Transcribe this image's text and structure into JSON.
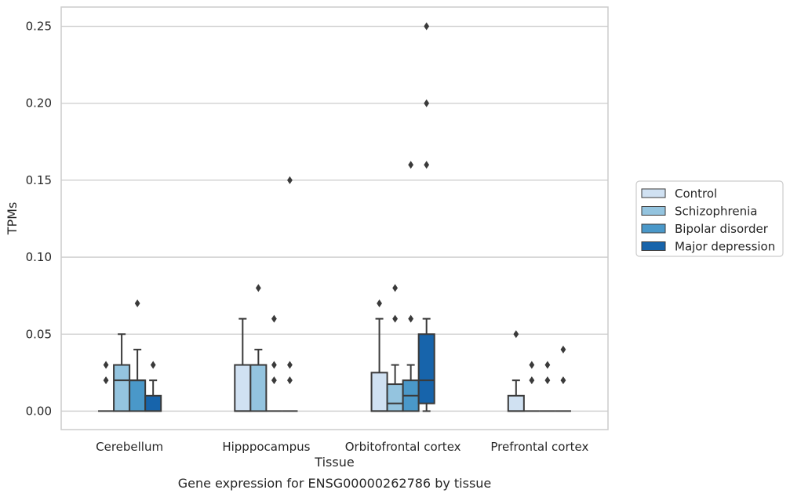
{
  "chart_data": {
    "type": "box",
    "title": "",
    "caption": "Gene expression for ENSG00000262786 by tissue",
    "xlabel": "Tissue",
    "ylabel": "TPMs",
    "ylim": [
      -0.012,
      0.2625
    ],
    "yticks": [
      "0.00",
      "0.05",
      "0.10",
      "0.15",
      "0.20",
      "0.25"
    ],
    "grid": "horizontal",
    "legend_position": "right-outside",
    "categories": [
      "Cerebellum",
      "Hipppocampus",
      "Orbitofrontal cortex",
      "Prefrontal cortex"
    ],
    "series": [
      {
        "name": "Control",
        "color": "#d0e1f2",
        "boxes": [
          {
            "q1": 0.0,
            "median": 0.0,
            "q3": 0.0,
            "whisker_low": 0.0,
            "whisker_high": 0.0,
            "outliers": [
              0.02,
              0.03
            ]
          },
          {
            "q1": 0.0,
            "median": 0.0,
            "q3": 0.03,
            "whisker_low": 0.0,
            "whisker_high": 0.06,
            "outliers": []
          },
          {
            "q1": 0.0,
            "median": 0.0,
            "q3": 0.025,
            "whisker_low": 0.0,
            "whisker_high": 0.06,
            "outliers": [
              0.07
            ]
          },
          {
            "q1": 0.0,
            "median": 0.0,
            "q3": 0.01,
            "whisker_low": 0.0,
            "whisker_high": 0.02,
            "outliers": [
              0.05
            ]
          }
        ]
      },
      {
        "name": "Schizophrenia",
        "color": "#94c4df",
        "boxes": [
          {
            "q1": 0.0,
            "median": 0.02,
            "q3": 0.03,
            "whisker_low": 0.0,
            "whisker_high": 0.05,
            "outliers": []
          },
          {
            "q1": 0.0,
            "median": 0.03,
            "q3": 0.03,
            "whisker_low": 0.0,
            "whisker_high": 0.04,
            "outliers": [
              0.08
            ]
          },
          {
            "q1": 0.0,
            "median": 0.005,
            "q3": 0.0175,
            "whisker_low": 0.0,
            "whisker_high": 0.03,
            "outliers": [
              0.06,
              0.08
            ]
          },
          {
            "q1": 0.0,
            "median": 0.0,
            "q3": 0.0,
            "whisker_low": 0.0,
            "whisker_high": 0.0,
            "outliers": [
              0.02,
              0.03
            ]
          }
        ]
      },
      {
        "name": "Bipolar disorder",
        "color": "#4a98c9",
        "boxes": [
          {
            "q1": 0.0,
            "median": 0.02,
            "q3": 0.02,
            "whisker_low": 0.0,
            "whisker_high": 0.04,
            "outliers": [
              0.07
            ]
          },
          {
            "q1": 0.0,
            "median": 0.0,
            "q3": 0.0,
            "whisker_low": 0.0,
            "whisker_high": 0.0,
            "outliers": [
              0.02,
              0.03,
              0.06
            ]
          },
          {
            "q1": 0.0,
            "median": 0.01,
            "q3": 0.02,
            "whisker_low": 0.0,
            "whisker_high": 0.03,
            "outliers": [
              0.06,
              0.16
            ]
          },
          {
            "q1": 0.0,
            "median": 0.0,
            "q3": 0.0,
            "whisker_low": 0.0,
            "whisker_high": 0.0,
            "outliers": [
              0.02,
              0.03
            ]
          }
        ]
      },
      {
        "name": "Major depression",
        "color": "#1764ab",
        "boxes": [
          {
            "q1": 0.0,
            "median": 0.0,
            "q3": 0.01,
            "whisker_low": 0.0,
            "whisker_high": 0.02,
            "outliers": [
              0.03
            ]
          },
          {
            "q1": 0.0,
            "median": 0.0,
            "q3": 0.0,
            "whisker_low": 0.0,
            "whisker_high": 0.0,
            "outliers": [
              0.02,
              0.03,
              0.15
            ]
          },
          {
            "q1": 0.005,
            "median": 0.02,
            "q3": 0.05,
            "whisker_low": 0.0,
            "whisker_high": 0.06,
            "outliers": [
              0.16,
              0.2,
              0.25
            ]
          },
          {
            "q1": 0.0,
            "median": 0.0,
            "q3": 0.0,
            "whisker_low": 0.0,
            "whisker_high": 0.0,
            "outliers": [
              0.02,
              0.04
            ]
          }
        ]
      }
    ]
  }
}
